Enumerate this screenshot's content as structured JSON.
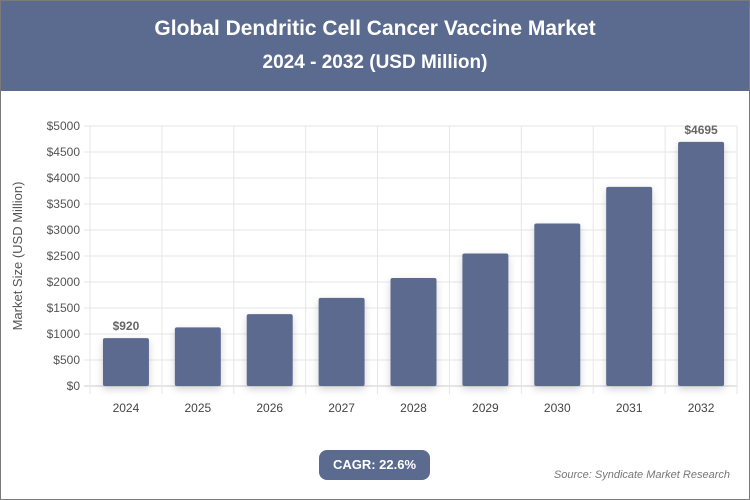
{
  "header": {
    "title": "Global Dendritic Cell Cancer Vaccine Market",
    "subtitle": "2024 - 2032 (USD Million)"
  },
  "chart_data": {
    "type": "bar",
    "title": "Global Dendritic Cell Cancer Vaccine Market",
    "subtitle": "2024 - 2032 (USD Million)",
    "xlabel": "",
    "ylabel": "Market Size (USD Million)",
    "categories": [
      "2024",
      "2025",
      "2026",
      "2027",
      "2028",
      "2029",
      "2030",
      "2031",
      "2032"
    ],
    "values": [
      920,
      1128,
      1383,
      1695,
      2078,
      2548,
      3124,
      3830,
      4695
    ],
    "data_labels": {
      "2024": "$920",
      "2032": "$4695"
    },
    "ylim": [
      0,
      5000
    ],
    "yticks": [
      "$0",
      "$500",
      "$1000",
      "$1500",
      "$2000",
      "$2500",
      "$3000",
      "$3500",
      "$4000",
      "$4500",
      "$5000"
    ],
    "grid": true,
    "bar_color": "#5b6b8f"
  },
  "footer": {
    "cagr": "CAGR: 22.6%",
    "source": "Source: Syndicate Market Research"
  }
}
